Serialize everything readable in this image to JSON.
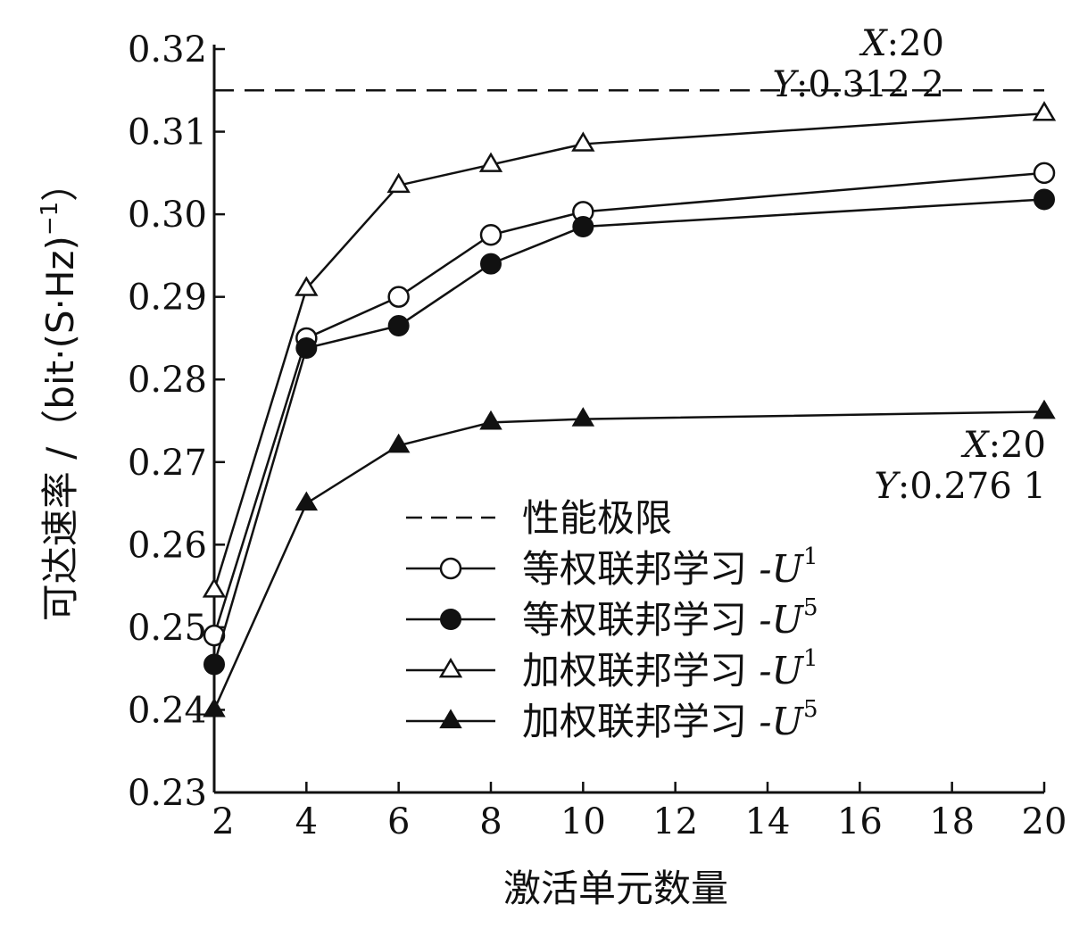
{
  "chart_data": {
    "type": "line",
    "xlabel": "激活单元数量",
    "ylabel": "可达速率 /（bit·(S·Hz)",
    "ylabel_sup": "−1",
    "ylabel_close": "）",
    "x_ticks": [
      2,
      4,
      6,
      8,
      10,
      12,
      14,
      16,
      18,
      20
    ],
    "x_tick_labels": [
      "2",
      "4",
      "6",
      "8",
      "10",
      "12",
      "14",
      "16",
      "18",
      "20"
    ],
    "y_ticks": [
      0.23,
      0.24,
      0.25,
      0.26,
      0.27,
      0.28,
      0.29,
      0.3,
      0.31,
      0.32
    ],
    "y_tick_labels": [
      "0.23",
      "0.24",
      "0.25",
      "0.26",
      "0.27",
      "0.28",
      "0.29",
      "0.30",
      "0.31",
      "0.32"
    ],
    "xlim": [
      2,
      20
    ],
    "ylim": [
      0.23,
      0.32
    ],
    "grid": false,
    "legend_position": "center-right",
    "reference_line": {
      "name": "性能极限",
      "y": 0.315,
      "style": "dashed"
    },
    "x": [
      2,
      4,
      6,
      8,
      10,
      20
    ],
    "series": [
      {
        "name": "等权联邦学习 -U",
        "name_sup": "1",
        "marker": "open-circle",
        "values": [
          0.249,
          0.285,
          0.29,
          0.2975,
          0.3003,
          0.305
        ]
      },
      {
        "name": "等权联邦学习 -U",
        "name_sup": "5",
        "marker": "filled-circle",
        "values": [
          0.2455,
          0.2838,
          0.2865,
          0.294,
          0.2985,
          0.3018
        ]
      },
      {
        "name": "加权联邦学习 -U",
        "name_sup": "1",
        "marker": "open-triangle",
        "values": [
          0.2545,
          0.291,
          0.3035,
          0.306,
          0.3085,
          0.3122
        ]
      },
      {
        "name": "加权联邦学习 -U",
        "name_sup": "5",
        "marker": "filled-triangle",
        "values": [
          0.24,
          0.265,
          0.272,
          0.2748,
          0.2752,
          0.2761
        ]
      }
    ],
    "annotations": [
      {
        "x_text": "20",
        "y_text": "0.312 2",
        "x_prefix": "X",
        "y_prefix": "Y"
      },
      {
        "x_text": "20",
        "y_text": "0.276 1",
        "x_prefix": "X",
        "y_prefix": "Y"
      }
    ]
  }
}
